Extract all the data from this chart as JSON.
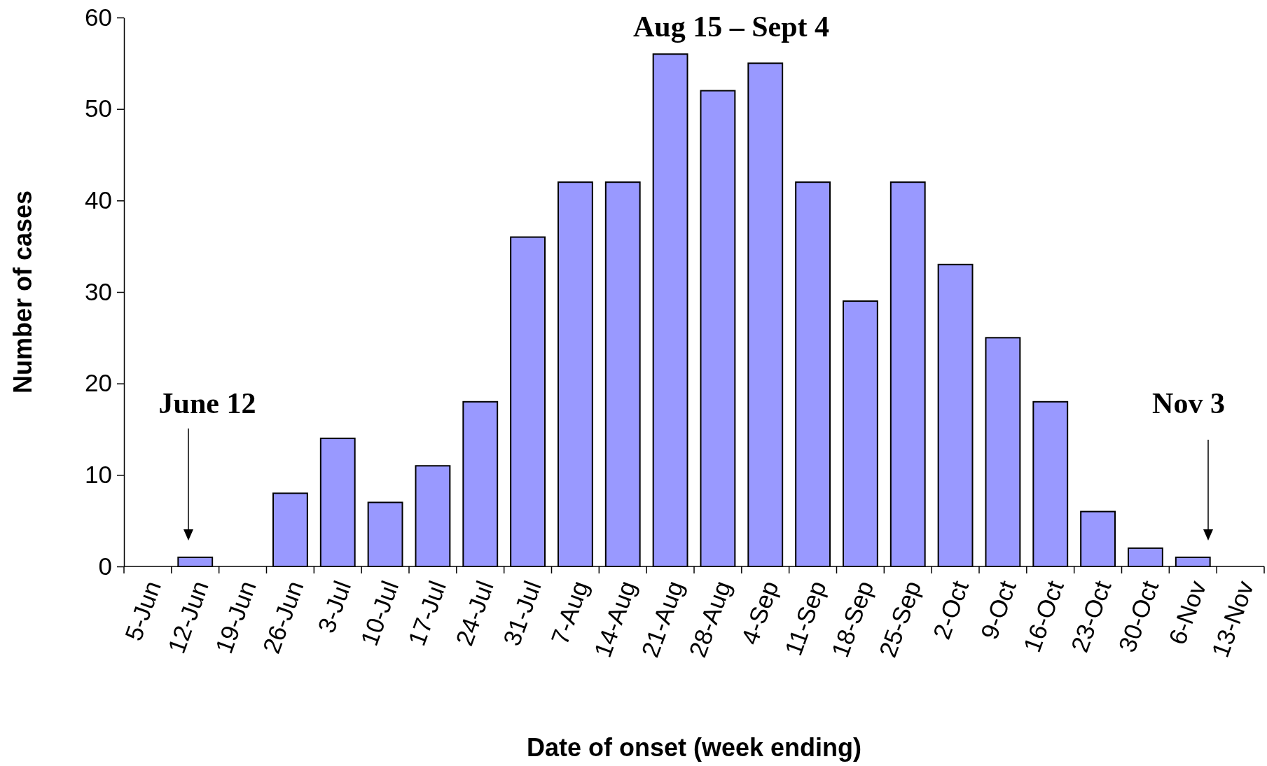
{
  "chart_data": {
    "type": "bar",
    "xlabel": "Date of onset (week ending)",
    "ylabel": "Number of cases",
    "categories": [
      "5-Jun",
      "12-Jun",
      "19-Jun",
      "26-Jun",
      "3-Jul",
      "10-Jul",
      "17-Jul",
      "24-Jul",
      "31-Jul",
      "7-Aug",
      "14-Aug",
      "21-Aug",
      "28-Aug",
      "4-Sep",
      "11-Sep",
      "18-Sep",
      "25-Sep",
      "2-Oct",
      "9-Oct",
      "16-Oct",
      "23-Oct",
      "30-Oct",
      "6-Nov",
      "13-Nov"
    ],
    "values": [
      0,
      1,
      0,
      8,
      14,
      7,
      11,
      18,
      36,
      42,
      42,
      56,
      52,
      55,
      42,
      29,
      42,
      33,
      25,
      18,
      6,
      2,
      1,
      0
    ],
    "color": "#9999ff",
    "ylim": [
      0,
      60
    ],
    "yticks": [
      0,
      10,
      20,
      30,
      40,
      50,
      60
    ],
    "grid": false,
    "annotations": [
      "June 12",
      "Nov 3",
      "Aug 15 – Sept 4"
    ]
  }
}
